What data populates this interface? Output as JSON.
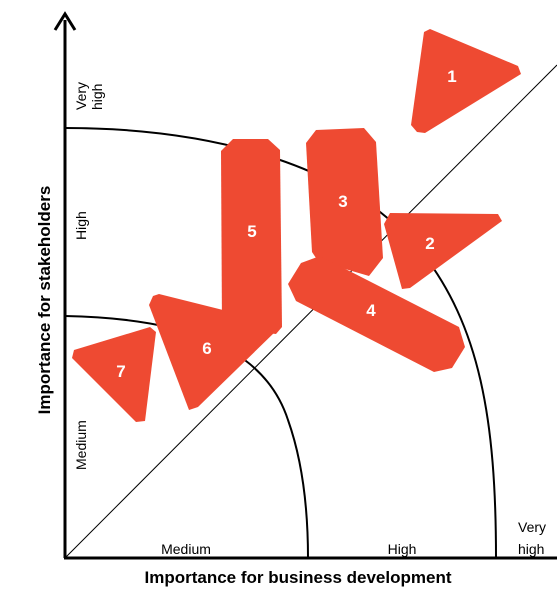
{
  "axes": {
    "x_title": "Importance for business development",
    "y_title": "Importance for stakeholders"
  },
  "zones": {
    "x": {
      "medium": "Medium",
      "high": "High",
      "very_high_line1": "Very",
      "very_high_line2": "high"
    },
    "y": {
      "medium": "Medium",
      "high": "High",
      "very_high_line1": "Very",
      "very_high_line2": "high"
    }
  },
  "items": [
    {
      "id": "1",
      "label": "1"
    },
    {
      "id": "2",
      "label": "2"
    },
    {
      "id": "3",
      "label": "3"
    },
    {
      "id": "4",
      "label": "4"
    },
    {
      "id": "5",
      "label": "5"
    },
    {
      "id": "6",
      "label": "6"
    },
    {
      "id": "7",
      "label": "7"
    }
  ],
  "colors": {
    "item_fill": "#ee4a32",
    "axis": "#000000",
    "label_text": "#ffffff"
  }
}
